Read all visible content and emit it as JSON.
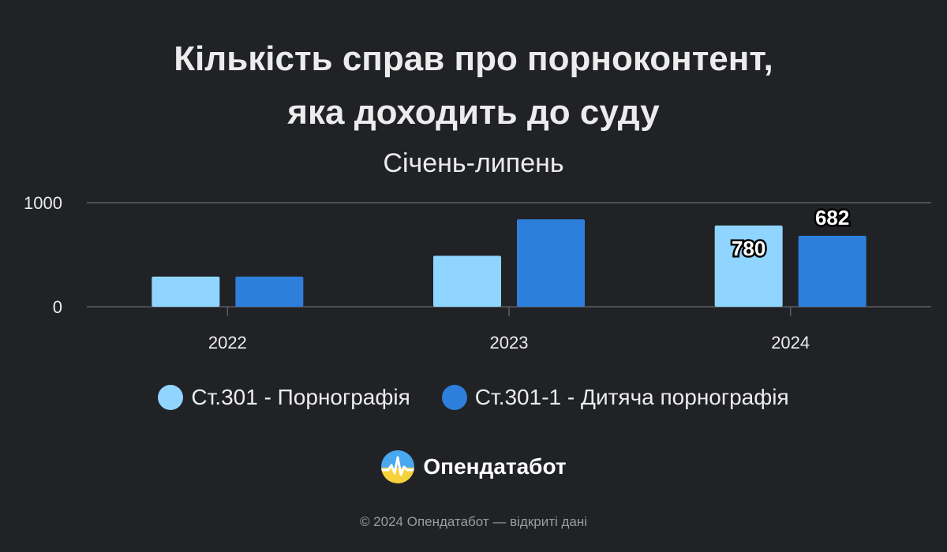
{
  "title_line1": "Кількість справ про порноконтент,",
  "title_line2": "яка доходить до суду",
  "subtitle": "Січень-липень",
  "chart_data": {
    "type": "bar",
    "categories": [
      "2022",
      "2023",
      "2024"
    ],
    "series": [
      {
        "name": "Ст.301 - Порнографія",
        "color": "#8fd5ff",
        "values": [
          290,
          490,
          780
        ],
        "labels": [
          null,
          null,
          "780"
        ]
      },
      {
        "name": "Ст.301-1 - Дитяча порнографія",
        "color": "#2e7fdb",
        "values": [
          290,
          840,
          682
        ],
        "labels": [
          null,
          null,
          "682"
        ]
      }
    ],
    "yticks": [
      0,
      1000
    ],
    "ylim": [
      0,
      1000
    ],
    "grid": true,
    "legend_position": "bottom"
  },
  "brand": {
    "name": "Опендатабот",
    "icon": "opendatabot-logo-icon"
  },
  "footer": "© 2024 Опендатабот — відкриті дані"
}
